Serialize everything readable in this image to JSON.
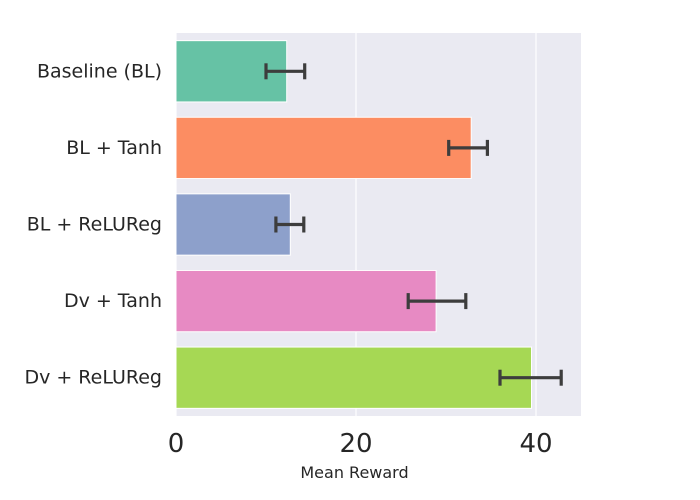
{
  "chart_data": {
    "type": "bar",
    "orientation": "horizontal",
    "categories": [
      "Baseline (BL)",
      "BL + Tanh",
      "BL + ReLUReg",
      "Dv + Tanh",
      "Dv + ReLUReg"
    ],
    "values": [
      12.3,
      32.8,
      12.7,
      28.9,
      39.5
    ],
    "error_low": [
      10.0,
      30.3,
      11.1,
      25.8,
      36.0
    ],
    "error_high": [
      14.3,
      34.6,
      14.2,
      32.2,
      42.8
    ],
    "colors": [
      "#66c2a5",
      "#fc8d62",
      "#8da0cb",
      "#e78ac3",
      "#a6d854"
    ],
    "xlabel": "Mean Reward",
    "ylabel": "",
    "xlim": [
      0,
      45
    ],
    "xticks": [
      0,
      20,
      40
    ],
    "grid": true,
    "background": "#eaeaf2"
  }
}
